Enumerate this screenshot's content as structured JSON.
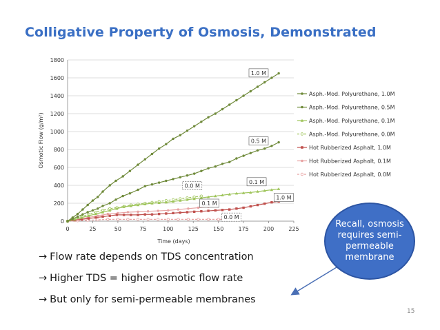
{
  "slide": {
    "title": "Colligative Property of Osmosis, Demonstrated",
    "bullets": [
      {
        "arrow": "→",
        "text": "Flow rate depends on TDS concentration"
      },
      {
        "arrow": "→",
        "text": "Higher TDS = higher osmotic flow rate"
      },
      {
        "arrow": "→",
        "text": "But only for semi-permeable membranes"
      }
    ],
    "callout": "Recall, osmosis requires semi-permeable membrane",
    "page_number": "15"
  },
  "chart_data": {
    "type": "line",
    "title": "",
    "xlabel": "Time (days)",
    "ylabel": "Osmotic Flow (g/m²)",
    "xlim": [
      0,
      225
    ],
    "ylim": [
      0,
      1800
    ],
    "xticks": [
      0,
      25,
      50,
      75,
      100,
      125,
      150,
      175,
      200,
      225
    ],
    "yticks": [
      0,
      200,
      400,
      600,
      800,
      1000,
      1200,
      1400,
      1600,
      1800
    ],
    "grid": "horizontal",
    "legend_position": "right",
    "series": [
      {
        "name": "Asph.-Mod. Polyurethane, 1.0M",
        "color": "#6f8a3a",
        "marker": "circle",
        "dashed": false,
        "x": [
          0,
          5,
          10,
          15,
          20,
          25,
          30,
          35,
          42,
          48,
          55,
          62,
          70,
          77,
          84,
          91,
          98,
          105,
          112,
          119,
          126,
          133,
          140,
          147,
          154,
          161,
          168,
          175,
          182,
          189,
          196,
          203,
          210
        ],
        "y": [
          0,
          40,
          80,
          130,
          180,
          230,
          270,
          330,
          400,
          450,
          500,
          560,
          630,
          690,
          750,
          810,
          860,
          920,
          960,
          1010,
          1060,
          1110,
          1160,
          1200,
          1250,
          1300,
          1350,
          1400,
          1450,
          1500,
          1550,
          1600,
          1650
        ]
      },
      {
        "name": "Asph.-Mod. Polyurethane, 0.5M",
        "color": "#6f8a3a",
        "marker": "circle",
        "dashed": false,
        "x": [
          0,
          5,
          10,
          15,
          20,
          25,
          30,
          35,
          42,
          48,
          55,
          62,
          70,
          77,
          84,
          91,
          98,
          105,
          112,
          119,
          126,
          133,
          140,
          147,
          154,
          161,
          168,
          175,
          182,
          189,
          196,
          203,
          210
        ],
        "y": [
          0,
          25,
          50,
          75,
          100,
          120,
          140,
          170,
          200,
          240,
          280,
          310,
          350,
          390,
          410,
          430,
          450,
          470,
          490,
          510,
          530,
          560,
          590,
          610,
          640,
          660,
          700,
          730,
          760,
          790,
          810,
          840,
          880
        ]
      },
      {
        "name": "Asph.-Mod. Polyurethane, 0.1M",
        "color": "#9ec45a",
        "marker": "triangle",
        "dashed": false,
        "x": [
          0,
          7,
          14,
          21,
          28,
          35,
          42,
          49,
          56,
          63,
          70,
          77,
          84,
          91,
          98,
          105,
          112,
          119,
          126,
          133,
          140,
          147,
          154,
          161,
          168,
          175,
          182,
          189,
          196,
          203,
          210
        ],
        "y": [
          0,
          20,
          40,
          60,
          80,
          100,
          120,
          140,
          160,
          170,
          180,
          190,
          200,
          205,
          210,
          220,
          230,
          240,
          250,
          260,
          270,
          280,
          290,
          300,
          310,
          315,
          320,
          330,
          340,
          350,
          360
        ]
      },
      {
        "name": "Asph.-Mod. Polyurethane, 0.0M",
        "color": "#9ec45a",
        "marker": "circle",
        "dashed": true,
        "x": [
          0,
          7,
          14,
          21,
          28,
          35,
          42,
          49,
          56,
          63,
          70,
          77,
          84,
          91,
          98,
          105,
          112,
          119,
          126,
          133
        ],
        "y": [
          0,
          25,
          50,
          75,
          100,
          120,
          140,
          150,
          165,
          180,
          190,
          200,
          210,
          220,
          230,
          240,
          250,
          260,
          270,
          280
        ]
      },
      {
        "name": "Hot Rubberized Asphalt, 1.0M",
        "color": "#c0504d",
        "marker": "square",
        "dashed": false,
        "x": [
          0,
          7,
          14,
          21,
          28,
          35,
          42,
          49,
          56,
          63,
          70,
          77,
          84,
          91,
          98,
          105,
          112,
          119,
          126,
          133,
          140,
          147,
          154,
          161,
          168,
          175,
          182,
          189,
          196,
          203,
          210
        ],
        "y": [
          0,
          10,
          20,
          30,
          40,
          50,
          60,
          70,
          70,
          70,
          70,
          75,
          75,
          80,
          85,
          90,
          95,
          100,
          105,
          110,
          115,
          120,
          125,
          130,
          140,
          150,
          165,
          180,
          195,
          210,
          220
        ]
      },
      {
        "name": "Hot Rubberized Asphalt, 0.1M",
        "color": "#e8a3a3",
        "marker": "circle",
        "dashed": false,
        "x": [
          0,
          10,
          20,
          30,
          40,
          50,
          60,
          70,
          80,
          90,
          100,
          110,
          120,
          130,
          140
        ],
        "y": [
          0,
          20,
          40,
          60,
          80,
          90,
          100,
          105,
          110,
          115,
          120,
          130,
          140,
          150,
          160
        ]
      },
      {
        "name": "Hot Rubberized Asphalt, 0.0M",
        "color": "#e8a3a3",
        "marker": "circle",
        "dashed": true,
        "x": [
          0,
          10,
          20,
          30,
          40,
          50,
          60,
          70,
          80,
          90,
          100,
          110,
          120,
          130,
          140,
          150,
          160,
          170
        ],
        "y": [
          0,
          5,
          10,
          15,
          20,
          20,
          20,
          20,
          20,
          20,
          20,
          20,
          20,
          20,
          20,
          20,
          20,
          20
        ]
      }
    ],
    "annotations": [
      {
        "text": "1.0 M",
        "x": 190,
        "y": 1655,
        "style": "solid"
      },
      {
        "text": "0.5 M",
        "x": 190,
        "y": 895,
        "style": "solid"
      },
      {
        "text": "0.1 M",
        "x": 188,
        "y": 440,
        "style": "solid"
      },
      {
        "text": "0.0 M",
        "x": 124,
        "y": 395,
        "style": "dashed"
      },
      {
        "text": "0.1 M",
        "x": 141,
        "y": 200,
        "style": "solid"
      },
      {
        "text": "1.0 M",
        "x": 215,
        "y": 265,
        "style": "solid"
      },
      {
        "text": "0.0 M",
        "x": 163,
        "y": 45,
        "style": "dashed"
      }
    ]
  }
}
